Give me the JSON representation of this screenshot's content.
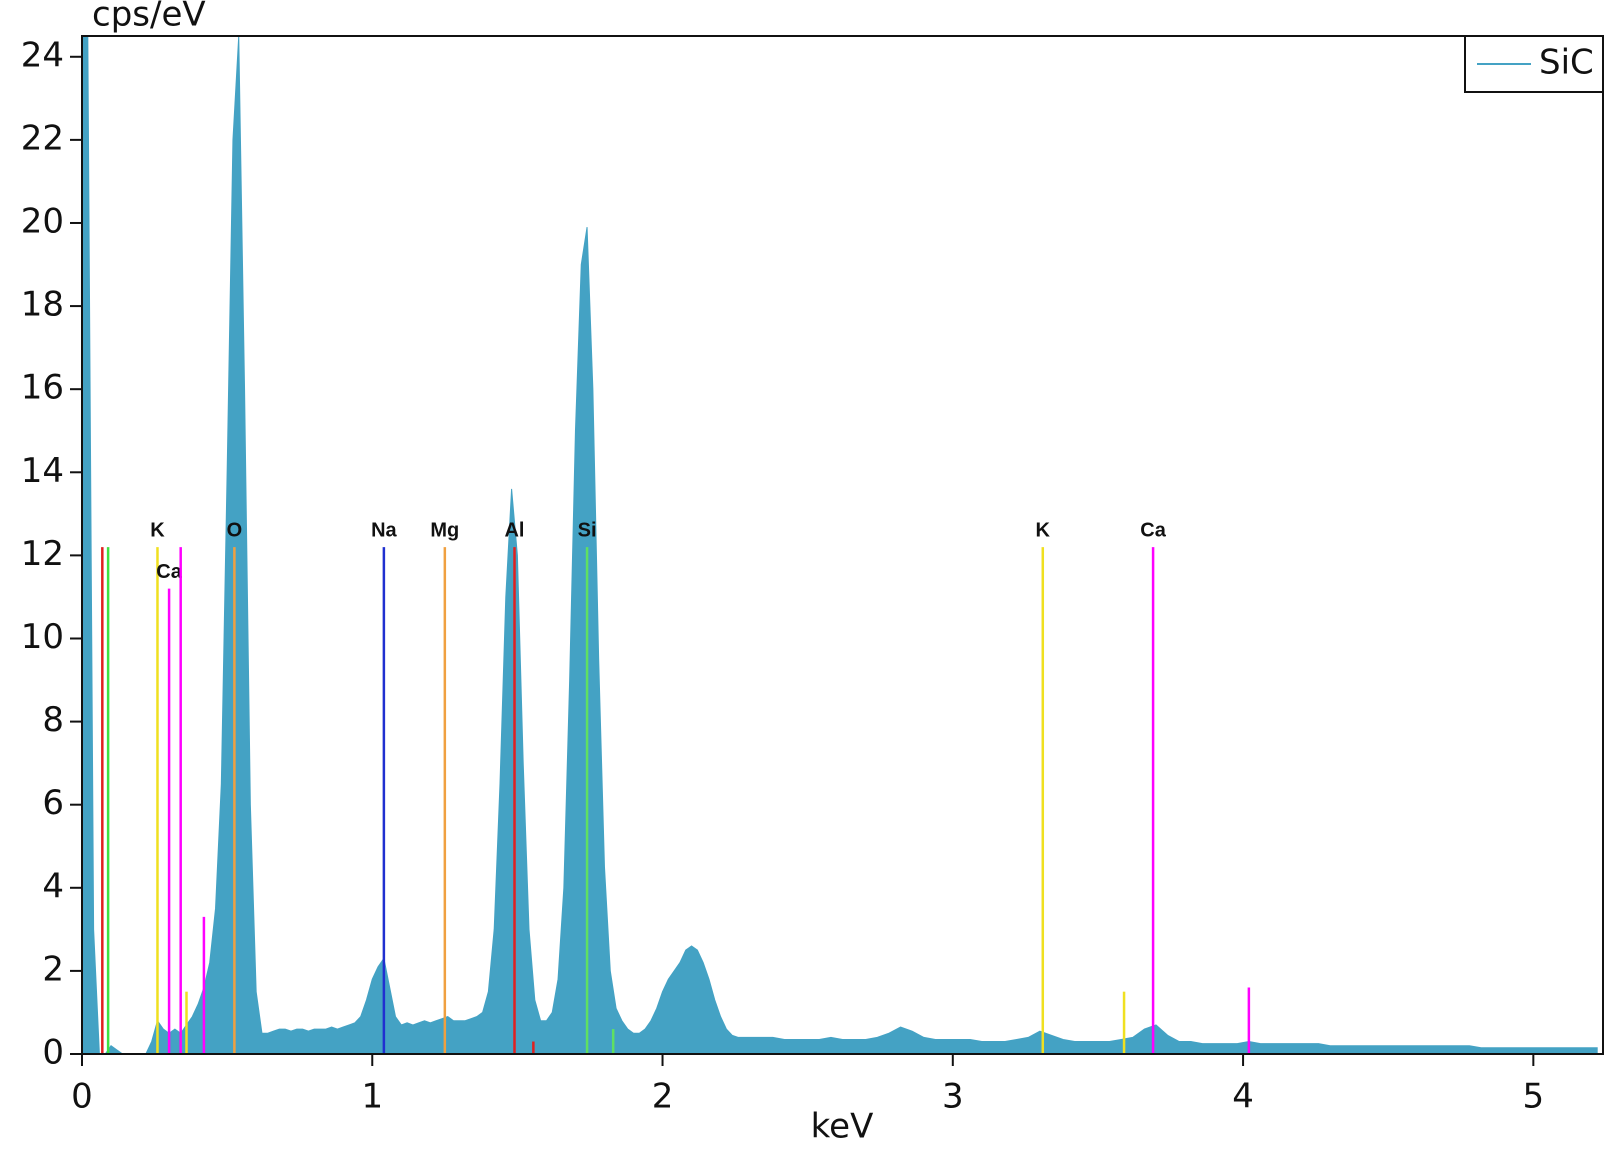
{
  "chart_data": {
    "type": "area",
    "y_label": "cps/eV",
    "x_label": "keV",
    "xlim": [
      0,
      5.24
    ],
    "ylim": [
      0,
      24.5
    ],
    "xticks": [
      0,
      1,
      2,
      3,
      4,
      5
    ],
    "yticks": [
      0,
      2,
      4,
      6,
      8,
      10,
      12,
      14,
      16,
      18,
      20,
      22,
      24
    ],
    "legend": "top-right",
    "series": [
      {
        "name": "SiC",
        "color": "#44a2c4",
        "x": [
          0,
          0.02,
          0.04,
          0.06,
          0.08,
          0.1,
          0.12,
          0.14,
          0.16,
          0.18,
          0.2,
          0.22,
          0.24,
          0.26,
          0.28,
          0.3,
          0.32,
          0.34,
          0.36,
          0.38,
          0.4,
          0.42,
          0.44,
          0.46,
          0.48,
          0.5,
          0.52,
          0.54,
          0.56,
          0.58,
          0.6,
          0.62,
          0.64,
          0.66,
          0.68,
          0.7,
          0.72,
          0.74,
          0.76,
          0.78,
          0.8,
          0.82,
          0.84,
          0.86,
          0.88,
          0.9,
          0.92,
          0.94,
          0.96,
          0.98,
          1,
          1.02,
          1.04,
          1.06,
          1.08,
          1.1,
          1.12,
          1.14,
          1.16,
          1.18,
          1.2,
          1.22,
          1.24,
          1.26,
          1.28,
          1.3,
          1.32,
          1.34,
          1.36,
          1.38,
          1.4,
          1.42,
          1.44,
          1.46,
          1.48,
          1.5,
          1.52,
          1.54,
          1.56,
          1.58,
          1.6,
          1.62,
          1.64,
          1.66,
          1.68,
          1.7,
          1.72,
          1.74,
          1.76,
          1.78,
          1.8,
          1.82,
          1.84,
          1.86,
          1.88,
          1.9,
          1.92,
          1.94,
          1.96,
          1.98,
          2,
          2.02,
          2.04,
          2.06,
          2.08,
          2.1,
          2.12,
          2.14,
          2.16,
          2.18,
          2.2,
          2.22,
          2.24,
          2.26,
          2.28,
          2.3,
          2.34,
          2.38,
          2.42,
          2.46,
          2.5,
          2.54,
          2.58,
          2.62,
          2.66,
          2.7,
          2.74,
          2.78,
          2.82,
          2.86,
          2.9,
          2.94,
          2.98,
          3.02,
          3.06,
          3.1,
          3.14,
          3.18,
          3.22,
          3.26,
          3.3,
          3.34,
          3.38,
          3.42,
          3.46,
          3.5,
          3.54,
          3.58,
          3.62,
          3.66,
          3.7,
          3.74,
          3.78,
          3.82,
          3.86,
          3.9,
          3.94,
          3.98,
          4.02,
          4.06,
          4.1,
          4.14,
          4.18,
          4.22,
          4.26,
          4.3,
          4.34,
          4.38,
          4.42,
          4.46,
          4.5,
          4.54,
          4.58,
          4.62,
          4.66,
          4.7,
          4.74,
          4.78,
          4.82,
          4.86,
          4.9,
          4.94,
          4.98,
          5.02,
          5.06,
          5.1,
          5.14,
          5.18,
          5.22
        ],
        "values": [
          24.5,
          24.5,
          3,
          0,
          0,
          0.2,
          0.1,
          0,
          0,
          0,
          0,
          0,
          0.3,
          0.8,
          0.6,
          0.5,
          0.6,
          0.5,
          0.7,
          0.9,
          1.2,
          1.6,
          2.2,
          3.5,
          6.5,
          14,
          22,
          24.5,
          16,
          6,
          1.5,
          0.5,
          0.5,
          0.55,
          0.6,
          0.6,
          0.55,
          0.6,
          0.6,
          0.55,
          0.6,
          0.6,
          0.6,
          0.65,
          0.6,
          0.65,
          0.7,
          0.75,
          0.9,
          1.3,
          1.8,
          2.1,
          2.3,
          1.6,
          0.9,
          0.7,
          0.75,
          0.7,
          0.75,
          0.8,
          0.75,
          0.8,
          0.85,
          0.9,
          0.8,
          0.8,
          0.8,
          0.85,
          0.9,
          1,
          1.5,
          3,
          6.5,
          11,
          13.6,
          12,
          7,
          3,
          1.3,
          0.8,
          0.8,
          1,
          1.8,
          4,
          9,
          15,
          19,
          19.9,
          16,
          9.5,
          4.5,
          2,
          1.1,
          0.8,
          0.6,
          0.5,
          0.5,
          0.6,
          0.8,
          1.1,
          1.5,
          1.8,
          2,
          2.2,
          2.5,
          2.6,
          2.5,
          2.2,
          1.8,
          1.3,
          0.9,
          0.6,
          0.45,
          0.4,
          0.4,
          0.4,
          0.4,
          0.4,
          0.35,
          0.35,
          0.35,
          0.35,
          0.4,
          0.35,
          0.35,
          0.35,
          0.4,
          0.5,
          0.65,
          0.55,
          0.4,
          0.35,
          0.35,
          0.35,
          0.35,
          0.3,
          0.3,
          0.3,
          0.35,
          0.4,
          0.55,
          0.45,
          0.35,
          0.3,
          0.3,
          0.3,
          0.3,
          0.35,
          0.4,
          0.6,
          0.7,
          0.45,
          0.3,
          0.3,
          0.25,
          0.25,
          0.25,
          0.25,
          0.3,
          0.25,
          0.25,
          0.25,
          0.25,
          0.25,
          0.25,
          0.2,
          0.2,
          0.2,
          0.2,
          0.2,
          0.2,
          0.2,
          0.2,
          0.2,
          0.2,
          0.2,
          0.2,
          0.2,
          0.15,
          0.15,
          0.15,
          0.15,
          0.15,
          0.15,
          0.15,
          0.15,
          0.15,
          0.15,
          0.15
        ]
      }
    ],
    "markers": [
      {
        "label": "K",
        "x": 0.26,
        "height": 12.2,
        "color": "#f0e020"
      },
      {
        "label": "Ca",
        "x": 0.3,
        "height": 11.2,
        "color": "#ff00ff"
      },
      {
        "x": 0.34,
        "height": 12.2,
        "color": "#ff00ff"
      },
      {
        "x": 0.07,
        "height": 12.2,
        "color": "#e02020"
      },
      {
        "x": 0.09,
        "height": 12.2,
        "color": "#40e040"
      },
      {
        "label": "O",
        "x": 0.525,
        "height": 12.2,
        "color": "#f0a040"
      },
      {
        "label": "Na",
        "x": 1.04,
        "height": 12.2,
        "color": "#2030d0"
      },
      {
        "label": "Mg",
        "x": 1.25,
        "height": 12.2,
        "color": "#f0a040"
      },
      {
        "label": "Al",
        "x": 1.49,
        "height": 12.2,
        "color": "#e02020"
      },
      {
        "label": "Si",
        "x": 1.74,
        "height": 12.2,
        "color": "#60e060"
      },
      {
        "label": "K",
        "x": 3.31,
        "height": 12.2,
        "color": "#f0e020"
      },
      {
        "label": "Ca",
        "x": 3.69,
        "height": 12.2,
        "color": "#ff00ff"
      },
      {
        "x": 0.42,
        "height": 3.3,
        "color": "#ff00ff"
      },
      {
        "x": 0.36,
        "height": 1.5,
        "color": "#f0e020"
      },
      {
        "x": 1.83,
        "height": 0.6,
        "color": "#60e060"
      },
      {
        "x": 3.59,
        "height": 1.5,
        "color": "#f0e020"
      },
      {
        "x": 4.02,
        "height": 1.6,
        "color": "#ff00ff"
      },
      {
        "x": 1.555,
        "height": 0.3,
        "color": "#e02020"
      }
    ]
  }
}
